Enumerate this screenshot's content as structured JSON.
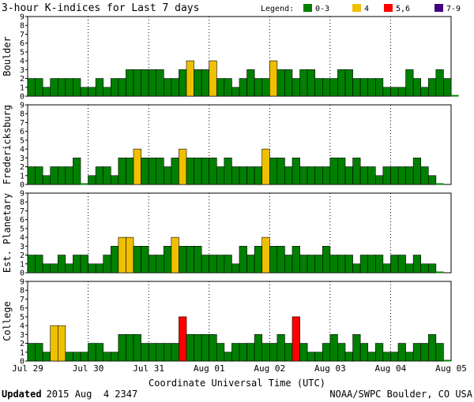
{
  "chart_data": {
    "type": "bar",
    "title": "3-hour K-indices for Last 7 days",
    "legend": {
      "label": "Legend:",
      "entries": [
        {
          "label": "0-3",
          "color": "#008000"
        },
        {
          "label": "4",
          "color": "#f0c000"
        },
        {
          "label": "5,6",
          "color": "#ff0000"
        },
        {
          "label": "7-9",
          "color": "#400080"
        }
      ]
    },
    "bar_outline_color": "#000000",
    "ylim": [
      0,
      9
    ],
    "yticks": [
      "0",
      "1",
      "2",
      "3",
      "4",
      "5",
      "6",
      "7",
      "8",
      "9"
    ],
    "xlabel": "Coordinate Universal Time (UTC)",
    "xticks": [
      "Jul 29",
      "Jul 30",
      "Jul 31",
      "Aug 01",
      "Aug 02",
      "Aug 03",
      "Aug 04",
      "Aug 05"
    ],
    "bars_per_day": 8,
    "series": [
      {
        "name": "Boulder",
        "values": [
          2,
          2,
          1,
          2,
          2,
          2,
          2,
          1,
          1,
          2,
          1,
          2,
          2,
          3,
          3,
          3,
          3,
          3,
          2,
          2,
          3,
          4,
          3,
          3,
          4,
          2,
          2,
          1,
          2,
          3,
          2,
          2,
          4,
          3,
          3,
          2,
          3,
          3,
          2,
          2,
          2,
          3,
          3,
          2,
          2,
          2,
          2,
          1,
          1,
          1,
          3,
          2,
          1,
          2,
          3,
          2,
          0
        ]
      },
      {
        "name": "Fredericksburg",
        "values": [
          2,
          2,
          1,
          2,
          2,
          2,
          3,
          0,
          1,
          2,
          2,
          1,
          3,
          3,
          4,
          3,
          3,
          3,
          2,
          3,
          4,
          3,
          3,
          3,
          3,
          2,
          3,
          2,
          2,
          2,
          2,
          4,
          3,
          3,
          2,
          3,
          2,
          2,
          2,
          2,
          3,
          3,
          2,
          3,
          2,
          2,
          1,
          2,
          2,
          2,
          2,
          3,
          2,
          1,
          0
        ]
      },
      {
        "name": "Est. Planetary",
        "values": [
          2,
          2,
          1,
          1,
          2,
          1,
          2,
          2,
          1,
          1,
          2,
          3,
          4,
          4,
          3,
          3,
          2,
          2,
          3,
          4,
          3,
          3,
          3,
          2,
          2,
          2,
          2,
          1,
          3,
          2,
          3,
          4,
          3,
          3,
          2,
          3,
          2,
          2,
          2,
          3,
          2,
          2,
          2,
          1,
          2,
          2,
          2,
          1,
          2,
          2,
          1,
          2,
          1,
          1,
          0
        ]
      },
      {
        "name": "College",
        "values": [
          2,
          2,
          1,
          4,
          4,
          1,
          1,
          1,
          2,
          2,
          1,
          1,
          3,
          3,
          3,
          2,
          2,
          2,
          2,
          2,
          5,
          3,
          3,
          3,
          3,
          2,
          1,
          2,
          2,
          2,
          3,
          2,
          2,
          3,
          2,
          5,
          2,
          1,
          1,
          2,
          3,
          2,
          1,
          3,
          2,
          1,
          2,
          1,
          1,
          2,
          1,
          2,
          2,
          3,
          2,
          0
        ]
      }
    ]
  },
  "footer": {
    "updated_label": "Updated",
    "updated_value": "2015 Aug  4 2347",
    "source": "NOAA/SWPC Boulder, CO USA"
  }
}
